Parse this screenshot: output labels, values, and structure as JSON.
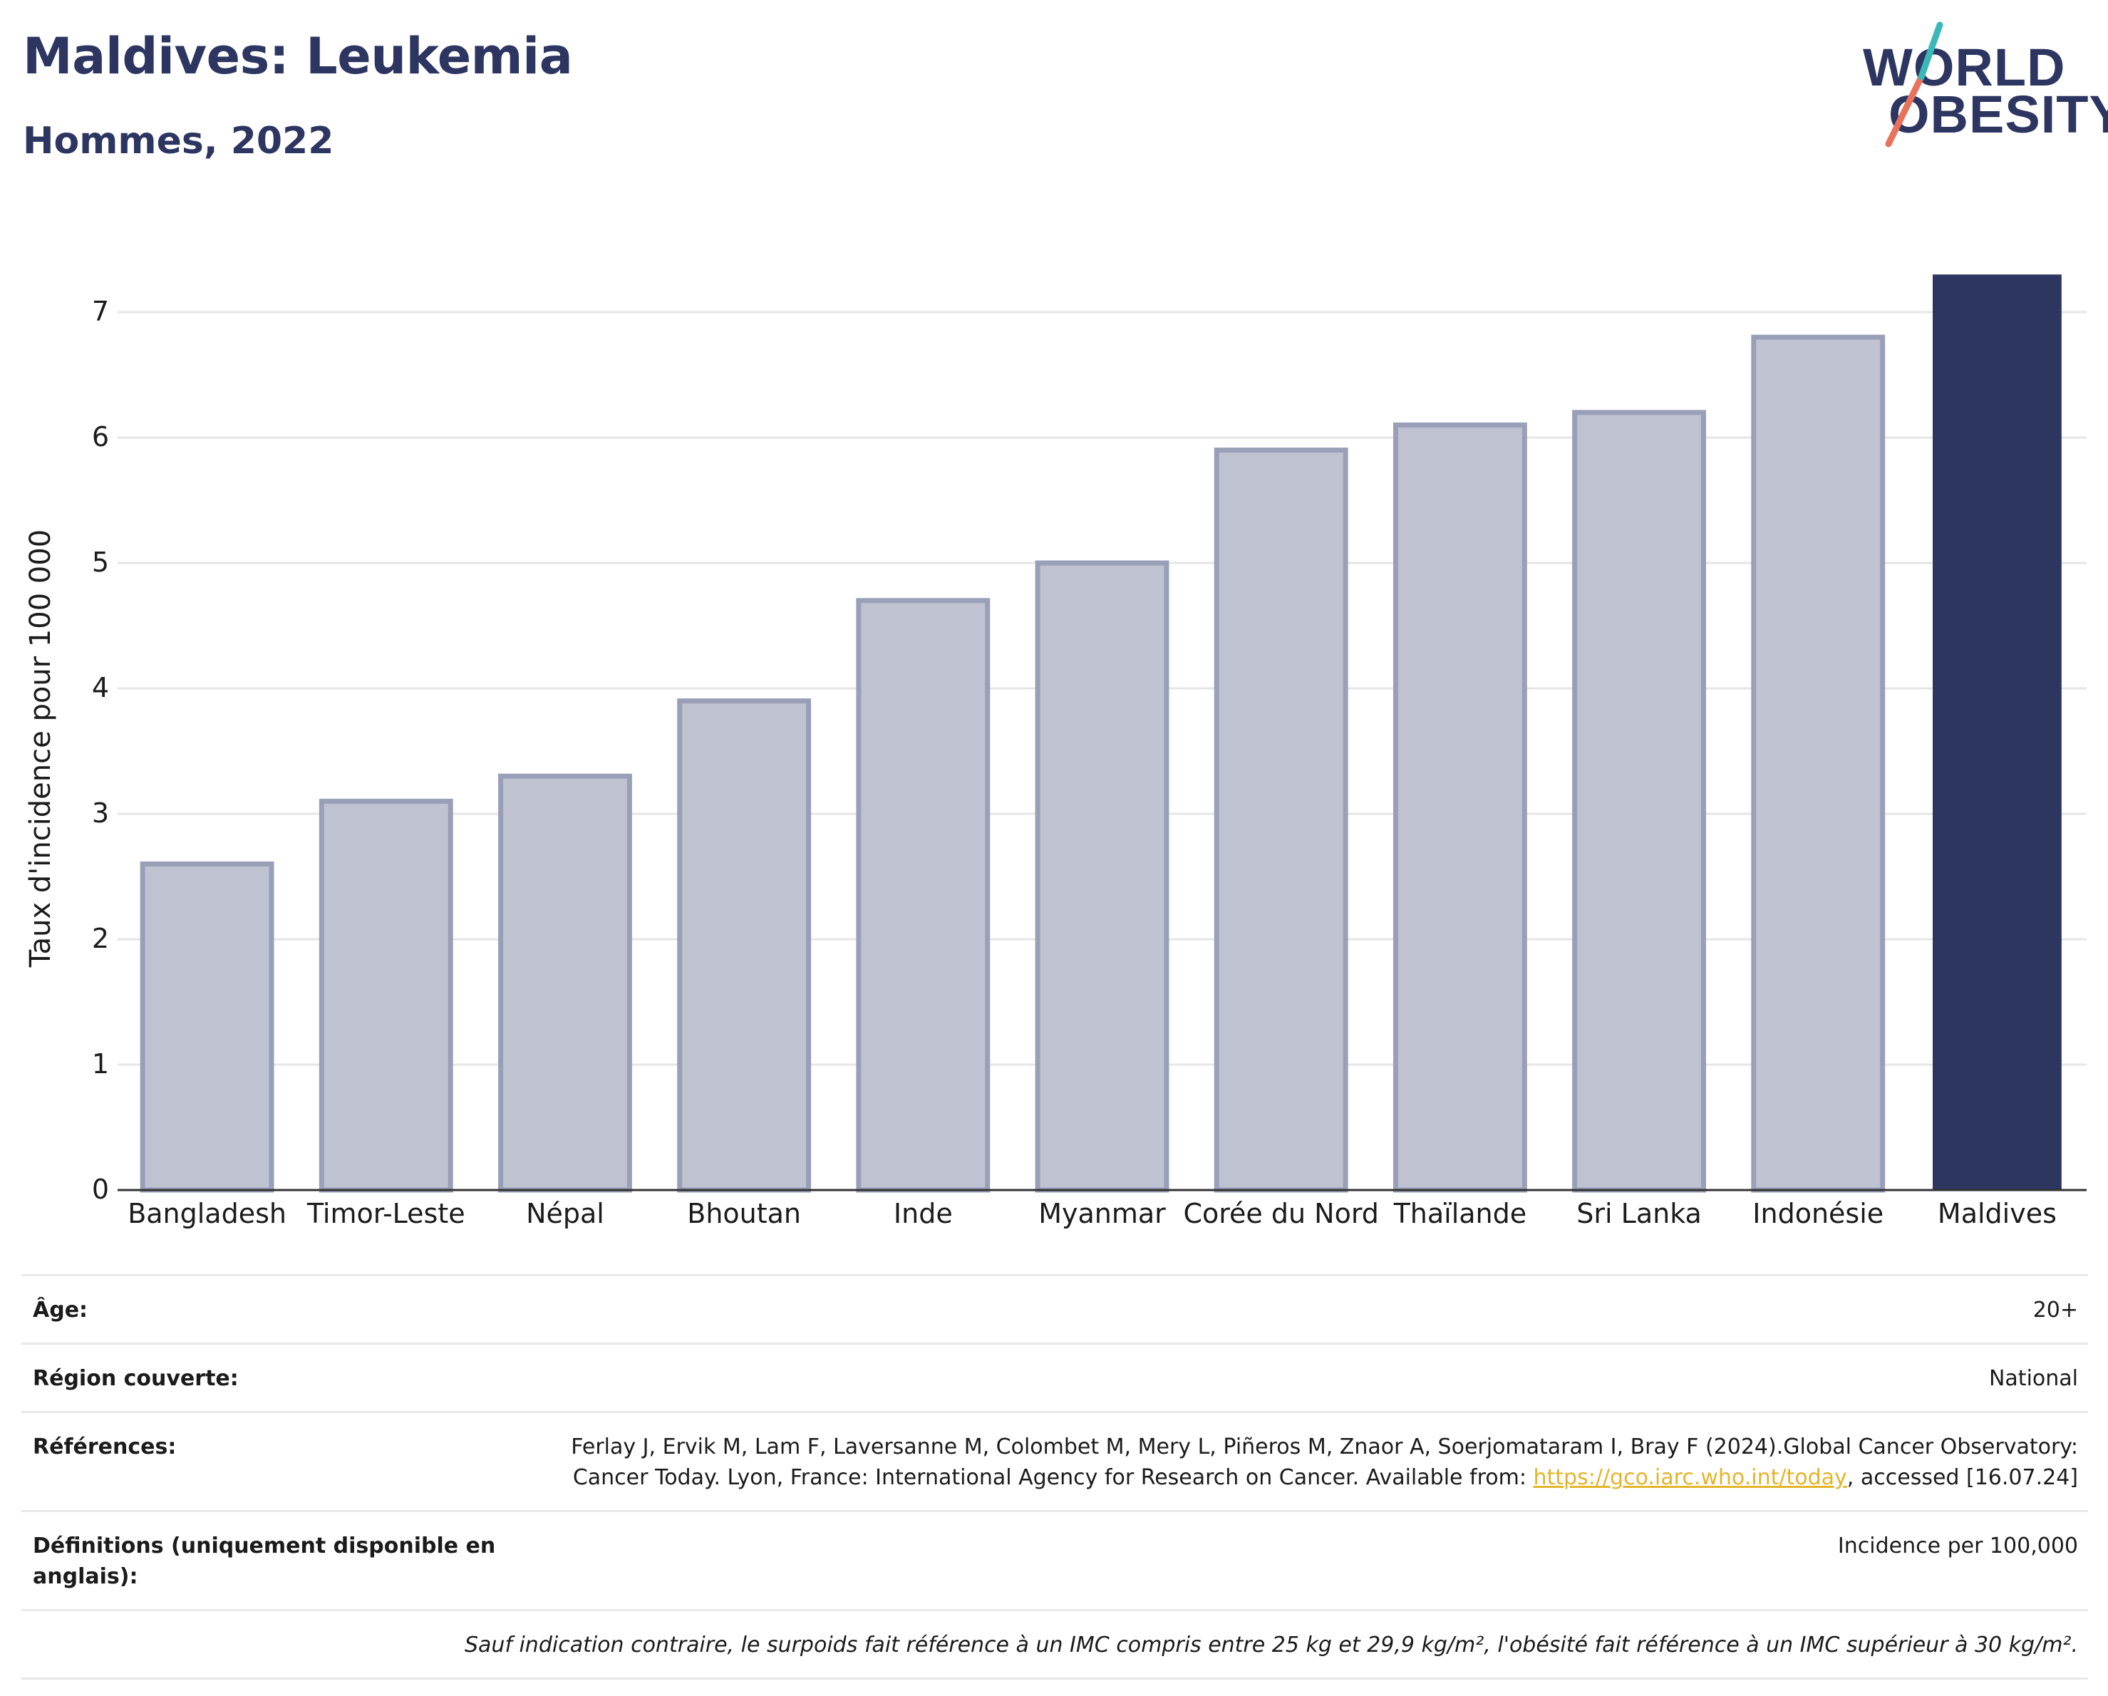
{
  "header": {
    "title": "Maldives: Leukemia",
    "subtitle": "Hommes, 2022"
  },
  "logo": {
    "line1": "WORLD",
    "line2": "OBESITY",
    "colors": [
      "#2d3561",
      "#3bb8b8",
      "#e8725c"
    ]
  },
  "chart_data": {
    "type": "bar",
    "categories": [
      "Bangladesh",
      "Timor-Leste",
      "Népal",
      "Bhoutan",
      "Inde",
      "Myanmar",
      "Corée du Nord",
      "Thaïlande",
      "Sri Lanka",
      "Indonésie",
      "Maldives"
    ],
    "values": [
      2.6,
      3.1,
      3.3,
      3.9,
      4.7,
      5.0,
      5.9,
      6.1,
      6.2,
      6.8,
      7.3
    ],
    "highlight": "Maldives",
    "ylabel": "Taux d'incidence pour 100 000",
    "ylim": [
      0,
      7.5
    ],
    "yticks": [
      0,
      1,
      2,
      3,
      4,
      5,
      6,
      7
    ],
    "grid": true,
    "colors": {
      "bar": "#bfc2d0",
      "bar_edge": "#9a9fb8",
      "highlight": "#2d3561"
    }
  },
  "meta": {
    "age_label": "Âge:",
    "age_value": "20+",
    "region_label": "Région couverte:",
    "region_value": "National",
    "references_label": "Références:",
    "references_text": "Ferlay J, Ervik M, Lam F, Laversanne M, Colombet M, Mery L, Piñeros M, Znaor A, Soerjomataram I, Bray F (2024).Global Cancer Observatory: Cancer Today. Lyon, France: International Agency for Research on Cancer. Available from:",
    "references_link": "https://gco.iarc.who.int/today",
    "references_tail": ", accessed [16.07.24]",
    "definitions_label": "Définitions (uniquement disponible en anglais):",
    "definitions_value": "Incidence per 100,000",
    "note": "Sauf indication contraire, le surpoids fait référence à un IMC compris entre 25 kg et 29,9 kg/m², l'obésité fait référence à un IMC supérieur à 30 kg/m²."
  }
}
